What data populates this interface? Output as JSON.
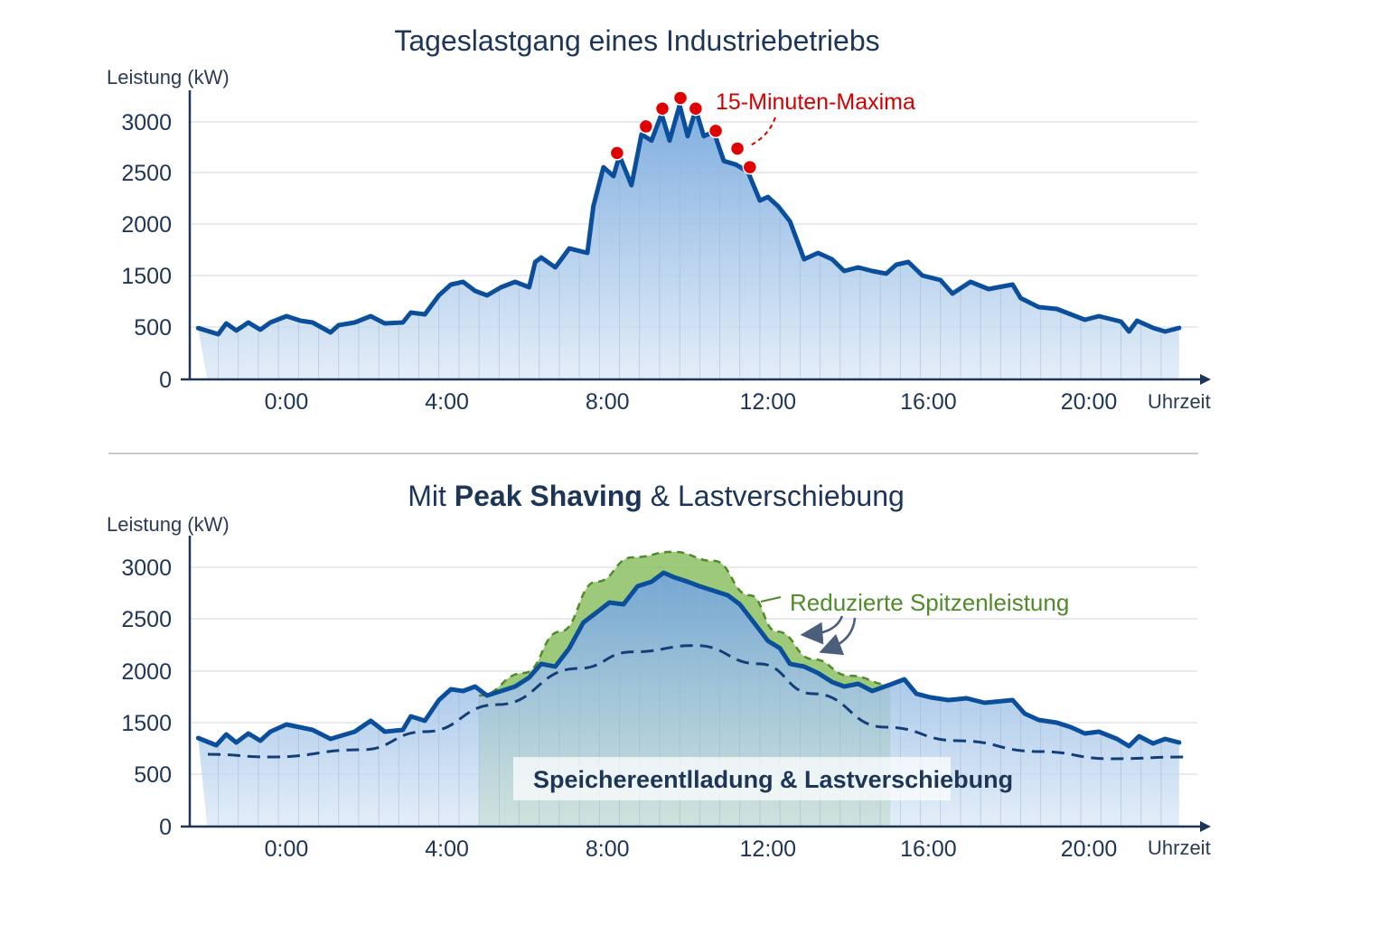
{
  "chart_data": [
    {
      "type": "area",
      "title": "Tageslastgang eines Industriebetriebs",
      "ylabel": "Leistung (kW)",
      "xlabel": "Uhrzeit",
      "x_unit": "hours",
      "yticks": [
        "0",
        "500",
        "1500",
        "2000",
        "2500",
        "3000"
      ],
      "ytick_values": [
        0,
        500,
        1500,
        2000,
        2500,
        3000
      ],
      "xticks": [
        "0:00",
        "4:00",
        "8:00",
        "12:00",
        "16:00",
        "20:00"
      ],
      "xtick_values": [
        0,
        4,
        8,
        12,
        16,
        20
      ],
      "xlim": [
        -2.4,
        23.2
      ],
      "grid": true,
      "colors": {
        "line": "#0b4f9c",
        "fill": "#8db6e2",
        "maxima": "#e00000"
      },
      "series": [
        {
          "x": [
            -2.2,
            -1.7,
            -1.5,
            -1.25,
            -0.95,
            -0.65,
            -0.4,
            0,
            0.35,
            0.65,
            1.1,
            1.3,
            1.7,
            2.1,
            2.45,
            2.9,
            3.1,
            3.45,
            3.8,
            4.1,
            4.4,
            4.7,
            5.0,
            5.35,
            5.7,
            6.05,
            6.2,
            6.35,
            6.7,
            7.05,
            7.5,
            7.65,
            7.9,
            8.15,
            8.3,
            8.6,
            8.85,
            9.1,
            9.35,
            9.55,
            9.8,
            10.0,
            10.2,
            10.4,
            10.65,
            10.9,
            11.2,
            11.5,
            11.8,
            12.0,
            12.25,
            12.55,
            12.9,
            13.25,
            13.6,
            13.9,
            14.25,
            14.6,
            14.95,
            15.2,
            15.5,
            15.85,
            16.3,
            16.6,
            17.05,
            17.5,
            18.1,
            18.3,
            18.75,
            19.2,
            19.55,
            19.9,
            20.25,
            20.8,
            21.0,
            21.2,
            21.6,
            21.9,
            22.25
          ],
          "y": [
            490,
            431,
            570,
            466,
            588,
            474,
            588,
            711,
            623,
            588,
            448,
            535,
            588,
            711,
            570,
            588,
            781,
            746,
            1114,
            1325,
            1377,
            1202,
            1114,
            1272,
            1377,
            1272,
            1632,
            1675,
            1579,
            1763,
            1719,
            2175,
            2553,
            2465,
            2667,
            2377,
            2877,
            2816,
            3079,
            2816,
            3167,
            2860,
            3123,
            2860,
            2904,
            2614,
            2579,
            2509,
            2228,
            2263,
            2175,
            2026,
            1658,
            1719,
            1658,
            1544,
            1579,
            1544,
            1518,
            1605,
            1632,
            1500,
            1412,
            1149,
            1377,
            1237,
            1325,
            1061,
            886,
            851,
            746,
            640,
            711,
            605,
            457,
            623,
            491,
            457,
            491
          ]
        }
      ],
      "maxima": {
        "label": "15-Minuten-Maxima",
        "x": [
          8.24,
          8.96,
          9.37,
          9.82,
          10.2,
          10.7,
          11.24,
          11.55
        ],
        "y": [
          2693,
          2956,
          3132,
          3237,
          3132,
          2912,
          2737,
          2553
        ]
      }
    },
    {
      "type": "area",
      "title_parts": [
        "Mit ",
        "Peak Shaving",
        " & Lastverschiebung"
      ],
      "ylabel": "Leistung (kW)",
      "xlabel": "Uhrzeit",
      "x_unit": "hours",
      "yticks": [
        "0",
        "500",
        "1500",
        "2000",
        "2500",
        "3000"
      ],
      "ytick_values": [
        0,
        500,
        1500,
        2000,
        2500,
        3000
      ],
      "xticks": [
        "0:00",
        "4:00",
        "8:00",
        "12:00",
        "16:00",
        "20:00"
      ],
      "xtick_values": [
        0,
        4,
        8,
        12,
        16,
        20
      ],
      "xlim": [
        -2.4,
        23.2
      ],
      "grid": true,
      "colors": {
        "line": "#0b4f9c",
        "fill": "#8db6e2",
        "reduced": "#8cc063",
        "envelope": "#4f8a2b",
        "shifted": "#123f7a"
      },
      "series": [
        {
          "x": [
            -2.2,
            -1.75,
            -1.5,
            -1.25,
            -0.95,
            -0.65,
            -0.4,
            0,
            0.65,
            1.1,
            1.7,
            2.1,
            2.45,
            2.9,
            3.1,
            3.45,
            3.8,
            4.1,
            4.4,
            4.7,
            5.0,
            5.35,
            5.7,
            6.05,
            6.35,
            6.7,
            7.05,
            7.4,
            7.7,
            8.05,
            8.4,
            8.75,
            9.1,
            9.4,
            9.65,
            10.0,
            10.3,
            10.65,
            11.0,
            11.3,
            11.65,
            12.0,
            12.3,
            12.55,
            12.9,
            13.25,
            13.6,
            13.9,
            14.25,
            14.6,
            15.05,
            15.4,
            15.7,
            16.05,
            16.5,
            16.95,
            17.4,
            18.1,
            18.4,
            18.75,
            19.2,
            19.55,
            19.9,
            20.25,
            20.7,
            21.0,
            21.25,
            21.6,
            21.9,
            22.25
          ],
          "y": [
            1202,
            1061,
            1272,
            1114,
            1289,
            1149,
            1325,
            1465,
            1360,
            1184,
            1325,
            1518,
            1325,
            1360,
            1561,
            1518,
            1719,
            1825,
            1807,
            1851,
            1763,
            1807,
            1851,
            1939,
            2070,
            2044,
            2219,
            2465,
            2553,
            2658,
            2640,
            2816,
            2860,
            2947,
            2904,
            2860,
            2816,
            2772,
            2728,
            2640,
            2465,
            2289,
            2219,
            2070,
            2044,
            1982,
            1895,
            1851,
            1877,
            1807,
            1869,
            1921,
            1781,
            1746,
            1719,
            1737,
            1693,
            1719,
            1588,
            1526,
            1500,
            1412,
            1289,
            1325,
            1184,
            1044,
            1237,
            1096,
            1184,
            1114
          ]
        },
        {
          "style": "dashed-green-envelope",
          "x": [
            4.8,
            5.92,
            6.82,
            7.73,
            8.63,
            9.64,
            10.65,
            11.55,
            12.23,
            13.13,
            14.03,
            15.05
          ],
          "y": [
            1763,
            1982,
            2377,
            2860,
            3097,
            3150,
            3062,
            2728,
            2377,
            2114,
            1956,
            1869
          ]
        },
        {
          "style": "dashed-blue-shifted",
          "x": [
            -1.96,
            -0.38,
            1.87,
            3.45,
            5.25,
            7.27,
            8.63,
            10.2,
            11.78,
            13.13,
            14.93,
            16.73,
            18.76,
            20.56,
            22.36
          ],
          "y": [
            886,
            833,
            974,
            1325,
            1675,
            2026,
            2184,
            2245,
            2070,
            1781,
            1412,
            1149,
            939,
            798,
            833
          ]
        }
      ],
      "annotations": {
        "reduced_peak": "Reduzierte Spitzenleistung",
        "storage": "Speichereentlladung & Lastverschiebung"
      }
    }
  ]
}
